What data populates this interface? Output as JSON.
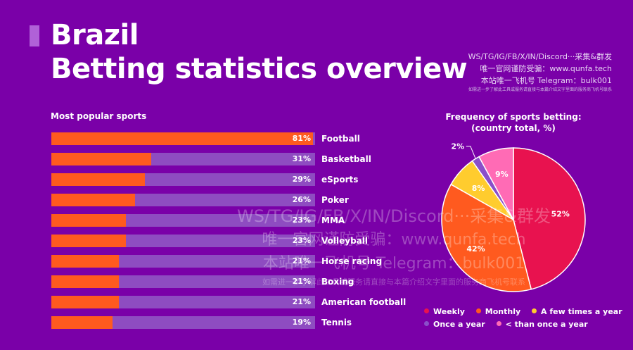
{
  "header": {
    "title_line1": "Brazil",
    "title_line2": "Betting statistics overview"
  },
  "watermark": {
    "line1": "WS/TG/IG/FB/X/IN/Discord···采集&群发",
    "line2": "唯一官网谨防受骗：www.qunfa.tech",
    "line3": "本站唯一飞机号 Telegram：bulk001",
    "line4": "如需进一步了解此工具或服务请直接与本篇介绍文字里面的服务商飞机号联系"
  },
  "colors": {
    "background": "#7a00a8",
    "bar_fill": "#ff5a1f",
    "bar_track": "#8e4cc1",
    "weekly": "#e8124f",
    "monthly": "#ff5a1f",
    "few_times_year": "#ffcc2e",
    "once_year": "#8a4fc9",
    "less_than_once": "#ff6bb5"
  },
  "chart_data": [
    {
      "type": "bar",
      "orientation": "horizontal",
      "title": "Most popular sports",
      "categories": [
        "Football",
        "Basketball",
        "eSports",
        "Poker",
        "MMA",
        "Volleyball",
        "Horse racing",
        "Boxing",
        "American football",
        "Tennis"
      ],
      "values": [
        81,
        31,
        29,
        26,
        23,
        23,
        21,
        21,
        21,
        19
      ],
      "value_labels": [
        "81%",
        "31%",
        "29%",
        "26%",
        "23%",
        "23%",
        "21%",
        "21%",
        "21%",
        "19%"
      ],
      "xlim": [
        0,
        100
      ],
      "grid": false
    },
    {
      "type": "pie",
      "title_line1": "Frequency of sports betting:",
      "title_line2": "(country total, %)",
      "categories": [
        "Weekly",
        "Monthly",
        "A few times a year",
        "Once a year",
        "< than once a year"
      ],
      "values": [
        52,
        42,
        8,
        2,
        9
      ],
      "value_labels": [
        "52%",
        "42%",
        "8%",
        "2%",
        "9%"
      ],
      "legend_position": "bottom"
    }
  ]
}
